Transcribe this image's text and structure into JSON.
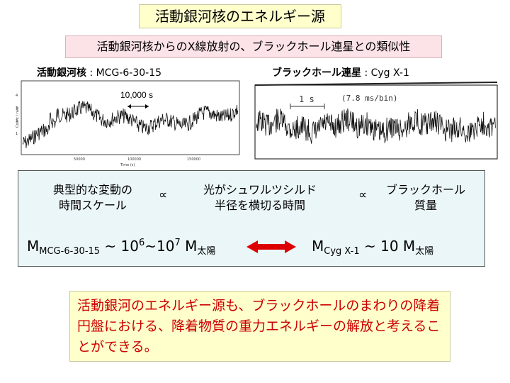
{
  "title": "活動銀河核のエネルギー源",
  "subtitle": "活動銀河核からのX線放射の、ブラックホール連星との類似性",
  "left_plot": {
    "label_bold": "活動銀河核",
    "label_rest": " : MCG-6-30-15",
    "scale_text": "10,000 s",
    "x_ticks": [
      "50000",
      "100000",
      "150000"
    ],
    "x_axis_label": "Time (s)",
    "y_axis_label": "Count / rate",
    "y_ticks": [
      "1",
      "2",
      "3",
      "4"
    ]
  },
  "right_plot": {
    "label_bold": "ブラックホール連星",
    "label_rest": " : Cyg X-1",
    "scale_text": "1 s",
    "bin_text": "(7.8 ms/bin)"
  },
  "info": {
    "line1a": "典型的な変動の",
    "line1b": "時間スケール",
    "prop1": "∝",
    "line2a": "光がシュワルツシルド",
    "line2b": "半径を横切る時間",
    "prop2": "∝",
    "line3a": "ブラックホール",
    "line3b": "質量",
    "mass_left": {
      "m": "M",
      "sub": "MCG-6-30-15",
      "approx": " ~ 10",
      "exp1": "6",
      "tilde": "~10",
      "exp2": "7",
      "m2": " M",
      "sub2": "太陽"
    },
    "mass_right": {
      "m": "M",
      "sub": "Cyg X-1",
      "approx": " ~ 10 M",
      "sub2": "太陽"
    }
  },
  "conclusion": "活動銀河のエネルギー源も、ブラックホールのまわりの降着円盤における、降着物質の重力エネルギーの解放と考えることができる。",
  "colors": {
    "arrow": "#dd0000",
    "conclusion_text": "#cc0000"
  }
}
